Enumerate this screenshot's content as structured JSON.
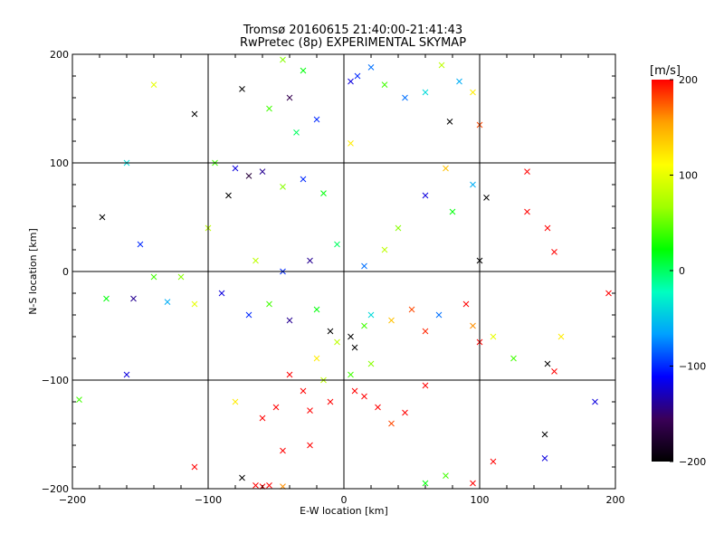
{
  "chart_data": {
    "type": "scatter",
    "title": "Tromsø 20160615 21:40:00-21:41:43",
    "subtitle": "RwPretec (8p) EXPERIMENTAL SKYMAP",
    "xlabel": "E-W location [km]",
    "ylabel": "N-S location [km]",
    "xlim": [
      -200,
      200
    ],
    "ylim": [
      -200,
      200
    ],
    "xticks": [
      -200,
      -100,
      0,
      100,
      200
    ],
    "yticks": [
      -200,
      -100,
      0,
      100,
      200
    ],
    "xtick_labels": [
      "−200",
      "−100",
      "0",
      "100",
      "200"
    ],
    "ytick_labels": [
      "−200",
      "−100",
      "0",
      "100",
      "200"
    ],
    "grid": true,
    "colorbar": {
      "label": "[m/s]",
      "min": -200,
      "max": 200,
      "ticks": [
        200,
        100,
        0,
        -100,
        -200
      ],
      "tick_labels": [
        "200",
        "100",
        "0",
        "−100",
        "−200"
      ],
      "colormap": [
        "#000000",
        "#3a0058",
        "#0000ff",
        "#00a0ff",
        "#00ffc0",
        "#00ff00",
        "#a0ff00",
        "#ffff00",
        "#ffa000",
        "#ff0000"
      ]
    },
    "markers": [
      "dot",
      "cross"
    ],
    "points": [
      {
        "x": -45,
        "y": 195,
        "v": 60,
        "m": "cross"
      },
      {
        "x": -30,
        "y": 185,
        "v": 20,
        "m": "cross"
      },
      {
        "x": 20,
        "y": 188,
        "v": -80,
        "m": "cross"
      },
      {
        "x": 10,
        "y": 180,
        "v": -100,
        "m": "cross"
      },
      {
        "x": 5,
        "y": 175,
        "v": -120,
        "m": "cross"
      },
      {
        "x": 30,
        "y": 172,
        "v": 40,
        "m": "cross"
      },
      {
        "x": 45,
        "y": 160,
        "v": -80,
        "m": "cross"
      },
      {
        "x": 60,
        "y": 165,
        "v": -40,
        "m": "cross"
      },
      {
        "x": 72,
        "y": 190,
        "v": 80,
        "m": "cross"
      },
      {
        "x": 85,
        "y": 175,
        "v": -60,
        "m": "cross"
      },
      {
        "x": 95,
        "y": 165,
        "v": 120,
        "m": "cross"
      },
      {
        "x": 78,
        "y": 138,
        "v": -200,
        "m": "cross"
      },
      {
        "x": 100,
        "y": 135,
        "v": 180,
        "m": "cross"
      },
      {
        "x": -140,
        "y": 172,
        "v": 100,
        "m": "cross"
      },
      {
        "x": -110,
        "y": 145,
        "v": -200,
        "m": "cross"
      },
      {
        "x": -75,
        "y": 168,
        "v": -200,
        "m": "cross"
      },
      {
        "x": -40,
        "y": 160,
        "v": -160,
        "m": "cross"
      },
      {
        "x": -55,
        "y": 150,
        "v": 40,
        "m": "cross"
      },
      {
        "x": -20,
        "y": 140,
        "v": -100,
        "m": "cross"
      },
      {
        "x": -35,
        "y": 128,
        "v": 0,
        "m": "cross"
      },
      {
        "x": 5,
        "y": 118,
        "v": 120,
        "m": "cross"
      },
      {
        "x": -95,
        "y": 100,
        "v": 40,
        "m": "cross"
      },
      {
        "x": -80,
        "y": 95,
        "v": -120,
        "m": "cross"
      },
      {
        "x": -70,
        "y": 88,
        "v": -170,
        "m": "cross"
      },
      {
        "x": -85,
        "y": 70,
        "v": -200,
        "m": "cross"
      },
      {
        "x": -60,
        "y": 92,
        "v": -140,
        "m": "cross"
      },
      {
        "x": -45,
        "y": 78,
        "v": 60,
        "m": "cross"
      },
      {
        "x": -30,
        "y": 85,
        "v": -100,
        "m": "cross"
      },
      {
        "x": -15,
        "y": 72,
        "v": 20,
        "m": "cross"
      },
      {
        "x": -160,
        "y": 100,
        "v": -40,
        "m": "cross"
      },
      {
        "x": -178,
        "y": 50,
        "v": -200,
        "m": "cross"
      },
      {
        "x": -150,
        "y": 25,
        "v": -100,
        "m": "cross"
      },
      {
        "x": -100,
        "y": 40,
        "v": 80,
        "m": "cross"
      },
      {
        "x": -120,
        "y": -5,
        "v": 60,
        "m": "cross"
      },
      {
        "x": -140,
        "y": -5,
        "v": 40,
        "m": "cross"
      },
      {
        "x": -175,
        "y": -25,
        "v": 20,
        "m": "cross"
      },
      {
        "x": -155,
        "y": -25,
        "v": -140,
        "m": "cross"
      },
      {
        "x": -130,
        "y": -28,
        "v": -60,
        "m": "cross"
      },
      {
        "x": -110,
        "y": -30,
        "v": 100,
        "m": "cross"
      },
      {
        "x": -90,
        "y": -20,
        "v": -120,
        "m": "cross"
      },
      {
        "x": -70,
        "y": -40,
        "v": -100,
        "m": "cross"
      },
      {
        "x": -55,
        "y": -30,
        "v": 40,
        "m": "cross"
      },
      {
        "x": -40,
        "y": -45,
        "v": -140,
        "m": "cross"
      },
      {
        "x": -20,
        "y": -35,
        "v": 20,
        "m": "cross"
      },
      {
        "x": -10,
        "y": -55,
        "v": -200,
        "m": "cross"
      },
      {
        "x": 5,
        "y": -60,
        "v": -200,
        "m": "cross"
      },
      {
        "x": 8,
        "y": -70,
        "v": -200,
        "m": "cross"
      },
      {
        "x": -5,
        "y": -65,
        "v": 80,
        "m": "cross"
      },
      {
        "x": 15,
        "y": -50,
        "v": 40,
        "m": "cross"
      },
      {
        "x": 20,
        "y": -40,
        "v": -40,
        "m": "cross"
      },
      {
        "x": 35,
        "y": -45,
        "v": 140,
        "m": "cross"
      },
      {
        "x": 50,
        "y": -35,
        "v": 180,
        "m": "cross"
      },
      {
        "x": 60,
        "y": -55,
        "v": 190,
        "m": "cross"
      },
      {
        "x": 70,
        "y": -40,
        "v": -80,
        "m": "cross"
      },
      {
        "x": 90,
        "y": -30,
        "v": 200,
        "m": "cross"
      },
      {
        "x": 95,
        "y": -50,
        "v": 160,
        "m": "cross"
      },
      {
        "x": 100,
        "y": -65,
        "v": 200,
        "m": "cross"
      },
      {
        "x": 110,
        "y": -60,
        "v": 100,
        "m": "cross"
      },
      {
        "x": 125,
        "y": -80,
        "v": 40,
        "m": "cross"
      },
      {
        "x": 150,
        "y": -85,
        "v": -200,
        "m": "cross"
      },
      {
        "x": 155,
        "y": -92,
        "v": 200,
        "m": "cross"
      },
      {
        "x": 195,
        "y": -20,
        "v": 200,
        "m": "cross"
      },
      {
        "x": 185,
        "y": -120,
        "v": -120,
        "m": "cross"
      },
      {
        "x": 160,
        "y": -60,
        "v": 120,
        "m": "cross"
      },
      {
        "x": 135,
        "y": 55,
        "v": 200,
        "m": "cross"
      },
      {
        "x": 150,
        "y": 40,
        "v": 200,
        "m": "cross"
      },
      {
        "x": 155,
        "y": 18,
        "v": 200,
        "m": "cross"
      },
      {
        "x": 135,
        "y": 92,
        "v": 200,
        "m": "cross"
      },
      {
        "x": 105,
        "y": 68,
        "v": -200,
        "m": "cross"
      },
      {
        "x": 100,
        "y": 10,
        "v": -200,
        "m": "cross"
      },
      {
        "x": 95,
        "y": 80,
        "v": -60,
        "m": "cross"
      },
      {
        "x": 75,
        "y": 95,
        "v": 140,
        "m": "cross"
      },
      {
        "x": 80,
        "y": 55,
        "v": 20,
        "m": "cross"
      },
      {
        "x": 60,
        "y": 70,
        "v": -120,
        "m": "cross"
      },
      {
        "x": 40,
        "y": 40,
        "v": 60,
        "m": "cross"
      },
      {
        "x": 30,
        "y": 20,
        "v": 80,
        "m": "cross"
      },
      {
        "x": 15,
        "y": 5,
        "v": -80,
        "m": "cross"
      },
      {
        "x": -5,
        "y": 25,
        "v": 0,
        "m": "cross"
      },
      {
        "x": -25,
        "y": 10,
        "v": -140,
        "m": "cross"
      },
      {
        "x": -45,
        "y": 0,
        "v": -100,
        "m": "cross"
      },
      {
        "x": -65,
        "y": 10,
        "v": 80,
        "m": "cross"
      },
      {
        "x": -20,
        "y": -80,
        "v": 120,
        "m": "cross"
      },
      {
        "x": -40,
        "y": -95,
        "v": 200,
        "m": "cross"
      },
      {
        "x": -15,
        "y": -100,
        "v": 80,
        "m": "cross"
      },
      {
        "x": 5,
        "y": -95,
        "v": 40,
        "m": "cross"
      },
      {
        "x": 20,
        "y": -85,
        "v": 60,
        "m": "cross"
      },
      {
        "x": -30,
        "y": -110,
        "v": 200,
        "m": "cross"
      },
      {
        "x": -50,
        "y": -125,
        "v": 200,
        "m": "cross"
      },
      {
        "x": -60,
        "y": -135,
        "v": 200,
        "m": "cross"
      },
      {
        "x": -25,
        "y": -128,
        "v": 200,
        "m": "cross"
      },
      {
        "x": -10,
        "y": -120,
        "v": 200,
        "m": "cross"
      },
      {
        "x": 8,
        "y": -110,
        "v": 200,
        "m": "cross"
      },
      {
        "x": 15,
        "y": -115,
        "v": 200,
        "m": "cross"
      },
      {
        "x": 25,
        "y": -125,
        "v": 200,
        "m": "cross"
      },
      {
        "x": 35,
        "y": -140,
        "v": 180,
        "m": "cross"
      },
      {
        "x": 45,
        "y": -130,
        "v": 200,
        "m": "cross"
      },
      {
        "x": 60,
        "y": -105,
        "v": 200,
        "m": "cross"
      },
      {
        "x": -45,
        "y": -165,
        "v": 200,
        "m": "cross"
      },
      {
        "x": -25,
        "y": -160,
        "v": 200,
        "m": "cross"
      },
      {
        "x": -75,
        "y": -190,
        "v": -200,
        "m": "cross"
      },
      {
        "x": -65,
        "y": -197,
        "v": 200,
        "m": "cross"
      },
      {
        "x": -55,
        "y": -197,
        "v": 200,
        "m": "cross"
      },
      {
        "x": -45,
        "y": -198,
        "v": 160,
        "m": "cross"
      },
      {
        "x": -60,
        "y": -198,
        "v": 200,
        "m": "cross"
      },
      {
        "x": 60,
        "y": -195,
        "v": 20,
        "m": "cross"
      },
      {
        "x": 75,
        "y": -188,
        "v": 40,
        "m": "cross"
      },
      {
        "x": 95,
        "y": -195,
        "v": 200,
        "m": "cross"
      },
      {
        "x": 110,
        "y": -175,
        "v": 200,
        "m": "cross"
      },
      {
        "x": 148,
        "y": -150,
        "v": -200,
        "m": "cross"
      },
      {
        "x": 148,
        "y": -172,
        "v": -120,
        "m": "cross"
      },
      {
        "x": -110,
        "y": -180,
        "v": 200,
        "m": "cross"
      },
      {
        "x": -195,
        "y": -118,
        "v": 40,
        "m": "cross"
      },
      {
        "x": -160,
        "y": -95,
        "v": -120,
        "m": "cross"
      },
      {
        "x": -80,
        "y": -120,
        "v": 120,
        "m": "cross"
      }
    ]
  }
}
